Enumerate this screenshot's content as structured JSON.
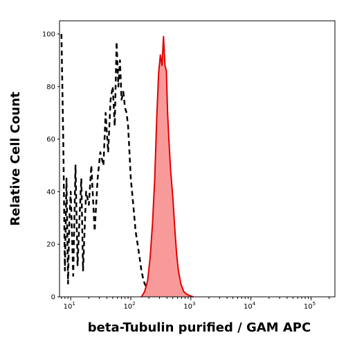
{
  "chart_data": {
    "type": "area",
    "xlabel": "beta-Tubulin purified  / GAM APC",
    "ylabel": "Relative Cell Count",
    "x_scale": "log",
    "xlim": [
      6.5,
      250000
    ],
    "ylim": [
      0,
      105
    ],
    "x_tick_labels": [
      {
        "base": "10",
        "exp": "1",
        "value": 10
      },
      {
        "base": "10",
        "exp": "2",
        "value": 100
      },
      {
        "base": "10",
        "exp": "3",
        "value": 1000
      },
      {
        "base": "10",
        "exp": "4",
        "value": 10000
      },
      {
        "base": "10",
        "exp": "5",
        "value": 100000
      }
    ],
    "y_ticks": [
      0,
      20,
      40,
      60,
      80,
      100
    ],
    "series": [
      {
        "style": "dashed",
        "color": "#000000",
        "x": [
          7,
          7.5,
          8,
          8.5,
          9,
          9.5,
          10,
          11,
          12,
          13,
          14,
          15,
          16,
          18,
          20,
          22,
          25,
          28,
          31,
          35,
          38,
          42,
          46,
          50,
          54,
          58,
          62,
          66,
          70,
          75,
          80,
          85,
          90,
          95,
          100,
          110,
          120,
          130,
          140,
          150,
          160,
          170,
          180,
          190,
          200,
          220
        ],
        "y": [
          100,
          60,
          10,
          45,
          5,
          30,
          40,
          8,
          50,
          12,
          30,
          45,
          10,
          40,
          35,
          50,
          25,
          45,
          55,
          50,
          70,
          55,
          75,
          80,
          65,
          97,
          80,
          90,
          75,
          78,
          72,
          70,
          65,
          55,
          45,
          35,
          25,
          20,
          15,
          10,
          7,
          5,
          4,
          3,
          2,
          0
        ]
      },
      {
        "style": "filled",
        "color": "#e00000",
        "fill": "#f99a9a",
        "x": [
          150,
          170,
          190,
          210,
          230,
          250,
          270,
          290,
          310,
          330,
          350,
          370,
          390,
          410,
          430,
          460,
          500,
          540,
          580,
          620,
          680,
          760,
          850,
          950,
          1100
        ],
        "y": [
          0,
          2,
          6,
          15,
          28,
          45,
          68,
          85,
          92,
          88,
          99,
          88,
          86,
          70,
          60,
          48,
          38,
          26,
          16,
          10,
          5,
          2,
          1,
          0.5,
          0
        ]
      }
    ]
  }
}
